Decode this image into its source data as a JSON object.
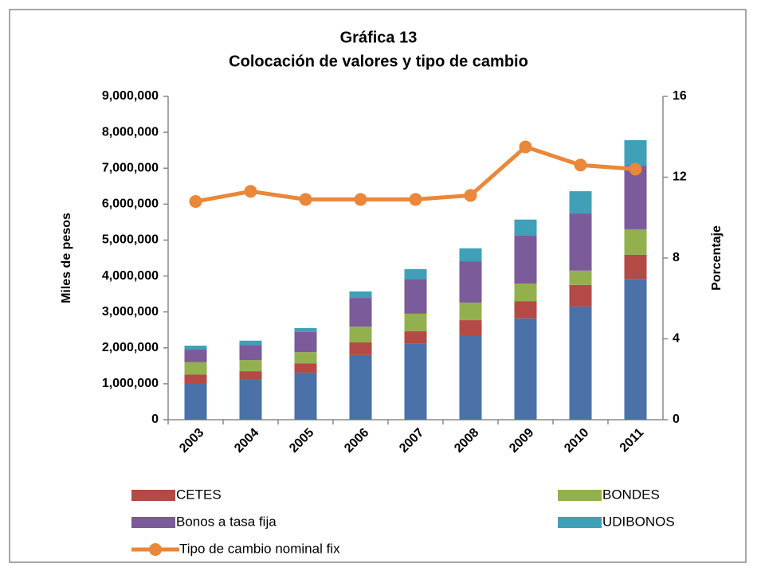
{
  "chart_data": {
    "type": "bar",
    "stacked": true,
    "title": "Gráfica 13",
    "subtitle": "Colocación de valores y tipo de cambio",
    "ylabel": "Miles de pesos",
    "y2label": "Porcentaje",
    "categories": [
      "2003",
      "2004",
      "2005",
      "2006",
      "2007",
      "2008",
      "2009",
      "2010",
      "2011"
    ],
    "series": [
      {
        "color": "#4a72a8",
        "values": [
          1020000,
          1110000,
          1310000,
          1800000,
          2110000,
          2350000,
          2820000,
          3150000,
          3920000
        ]
      },
      {
        "name": "CETES",
        "color": "#b34a45",
        "values": [
          240000,
          240000,
          260000,
          350000,
          350000,
          420000,
          480000,
          600000,
          670000
        ]
      },
      {
        "name": "BONDES",
        "color": "#93b04f",
        "values": [
          340000,
          310000,
          310000,
          440000,
          490000,
          490000,
          490000,
          400000,
          710000
        ]
      },
      {
        "name": "Bonos a tasa fija",
        "color": "#7b5b99",
        "values": [
          350000,
          420000,
          560000,
          800000,
          970000,
          1150000,
          1330000,
          1590000,
          1770000
        ]
      },
      {
        "name": "UDIBONOS",
        "color": "#3fa0b8",
        "values": [
          110000,
          120000,
          110000,
          180000,
          270000,
          360000,
          450000,
          620000,
          710000
        ]
      },
      {
        "name": "Tipo de cambio nominal fix",
        "type": "line",
        "axis": "y2",
        "color": "#e9873a",
        "values": [
          10.8,
          11.3,
          10.9,
          10.9,
          10.9,
          11.1,
          13.5,
          12.6,
          12.4
        ]
      }
    ],
    "ylim": [
      0,
      9000000
    ],
    "yticks": [
      0,
      {
        "value": 1000000,
        "label": "1,000,000"
      },
      {
        "value": 2000000,
        "label": "2,000,000"
      },
      {
        "value": 3000000,
        "label": "3,000,000"
      },
      {
        "value": 4000000,
        "label": "4,000,000"
      },
      {
        "value": 5000000,
        "label": "5,000,000"
      },
      {
        "value": 6000000,
        "label": "6,000,000"
      },
      {
        "value": 7000000,
        "label": "7,000,000"
      },
      {
        "value": 8000000,
        "label": "8,000,000"
      },
      {
        "value": 9000000,
        "label": "9,000,000"
      }
    ],
    "y2lim": [
      0,
      16
    ],
    "y2ticks": [
      0,
      4,
      8,
      12,
      16
    ],
    "grid": false,
    "legend": "bottom"
  }
}
